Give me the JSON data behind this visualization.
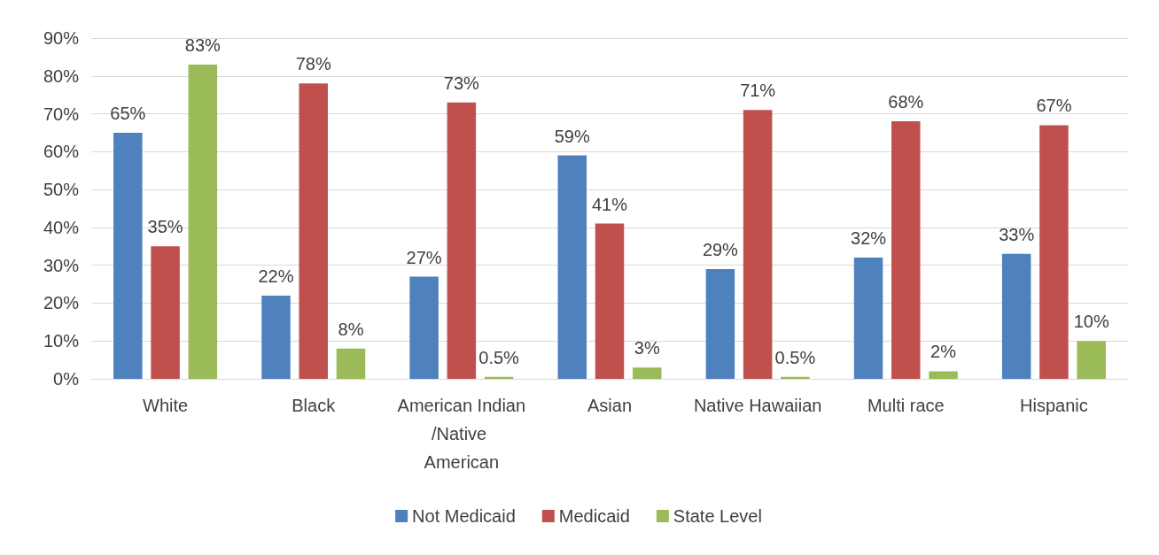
{
  "chart_data": {
    "type": "bar",
    "categories": [
      "White",
      "Black",
      "American Indian/Native American",
      "Asian",
      "Native Hawaiian",
      "Multi race",
      "Hispanic"
    ],
    "series": [
      {
        "name": "Not Medicaid",
        "color": "#4f81bd",
        "values": [
          65,
          22,
          27,
          59,
          29,
          32,
          33
        ],
        "value_labels": [
          "65%",
          "22%",
          "27%",
          "59%",
          "29%",
          "32%",
          "33%"
        ]
      },
      {
        "name": "Medicaid",
        "color": "#c0504d",
        "values": [
          35,
          78,
          73,
          41,
          71,
          68,
          67
        ],
        "value_labels": [
          "35%",
          "78%",
          "73%",
          "41%",
          "71%",
          "68%",
          "67%"
        ]
      },
      {
        "name": "State Level",
        "color": "#9bbb59",
        "values": [
          83,
          8,
          0.5,
          3,
          0.5,
          2,
          10
        ],
        "value_labels": [
          "83%",
          "8%",
          "0.5%",
          "3%",
          "0.5%",
          "2%",
          "10%"
        ]
      }
    ],
    "ylim": [
      0,
      90
    ],
    "yticks": [
      {
        "value": 0,
        "label": "0%"
      },
      {
        "value": 10,
        "label": "10%"
      },
      {
        "value": 20,
        "label": "20%"
      },
      {
        "value": 30,
        "label": "30%"
      },
      {
        "value": 40,
        "label": "40%"
      },
      {
        "value": 50,
        "label": "50%"
      },
      {
        "value": 60,
        "label": "60%"
      },
      {
        "value": 70,
        "label": "70%"
      },
      {
        "value": 80,
        "label": "80%"
      },
      {
        "value": 90,
        "label": "90%"
      }
    ],
    "grid": "y",
    "legend": "bottom"
  }
}
